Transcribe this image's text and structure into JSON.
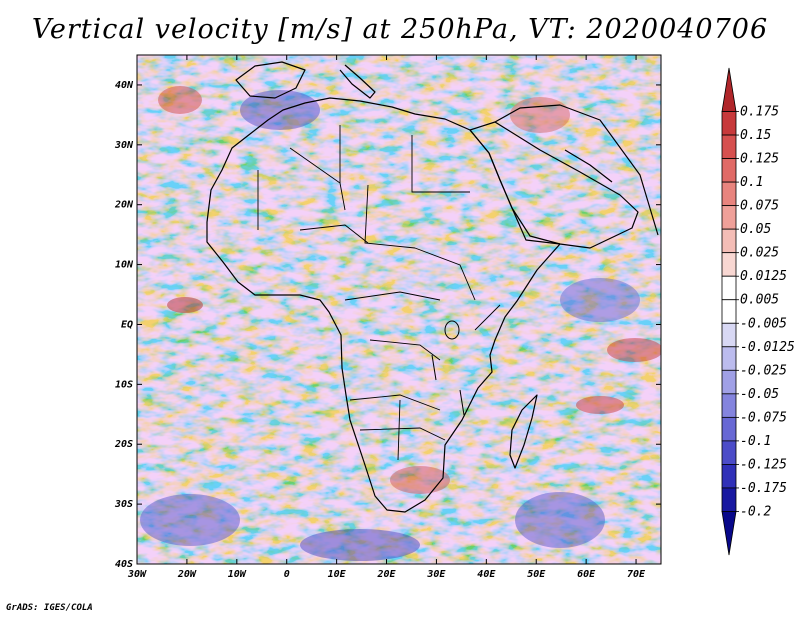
{
  "title": "Vertical velocity [m/s] at 250hPa, VT: 2020040706",
  "footer": "GrADS: IGES/COLA",
  "map": {
    "lon_range": [
      -30,
      75
    ],
    "lat_range": [
      -40,
      45
    ],
    "lon_ticks": [
      "30W",
      "20W",
      "10W",
      "0",
      "10E",
      "20E",
      "30E",
      "40E",
      "50E",
      "60E",
      "70E"
    ],
    "lat_ticks": [
      "40N",
      "30N",
      "20N",
      "10N",
      "EQ",
      "10S",
      "20S",
      "30S",
      "40S"
    ]
  },
  "colorbar": {
    "labels": [
      "0.175",
      "0.15",
      "0.125",
      "0.1",
      "0.075",
      "0.05",
      "0.025",
      "0.0125",
      "0.005",
      "-0.005",
      "-0.0125",
      "-0.025",
      "-0.05",
      "-0.075",
      "-0.1",
      "-0.125",
      "-0.175",
      "-0.2"
    ],
    "colors": [
      "#b0262a",
      "#c7393b",
      "#d6504f",
      "#e06a66",
      "#e8847e",
      "#efa099",
      "#f4bdb6",
      "#f8d7d2",
      "#ffffff",
      "#ffffff",
      "#d8d8f4",
      "#bcbcee",
      "#a0a0e6",
      "#8484de",
      "#6868d4",
      "#4c4cc8",
      "#3030b8",
      "#1818a0",
      "#08088a"
    ]
  }
}
